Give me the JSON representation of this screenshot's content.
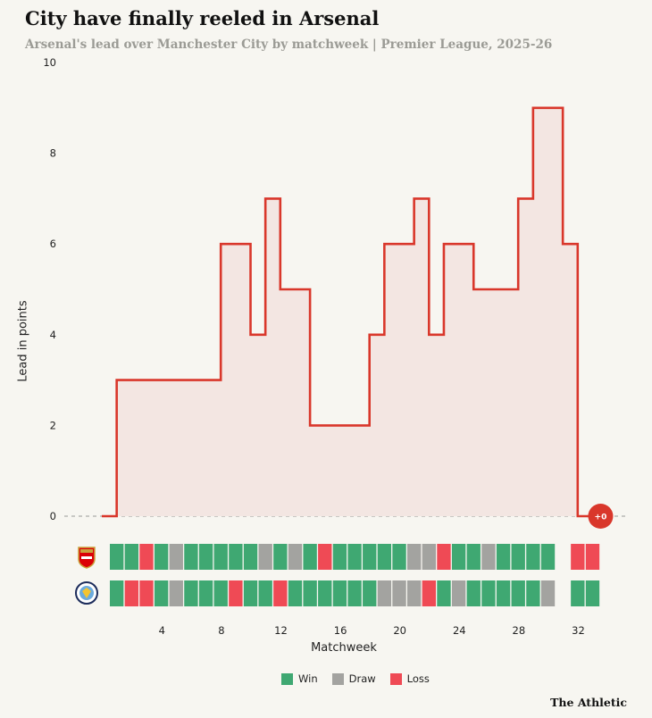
{
  "title": "City have finally reeled in Arsenal",
  "subtitle": "Arsenal's lead over Manchester City by matchweek | Premier League, 2025-26",
  "brand": "The Athletic",
  "legend": {
    "win": "Win",
    "draw": "Draw",
    "loss": "Loss"
  },
  "colors": {
    "win": "#3fa872",
    "draw": "#a3a3a0",
    "loss": "#ef4a55",
    "line": "#d9372b",
    "area": "#f3e6e2",
    "badge": "#d9372b"
  },
  "teams": {
    "arsenal": "arsenal-crest-icon",
    "city": "man-city-crest-icon"
  },
  "end_badge": "+0",
  "chart_data": {
    "type": "area",
    "title": "City have finally reeled in Arsenal",
    "subtitle": "Arsenal's lead over Manchester City by matchweek | Premier League, 2025-26",
    "xlabel": "Matchweek",
    "ylabel": "Lead in points",
    "xlim": [
      1,
      33
    ],
    "ylim": [
      0,
      10
    ],
    "yticks": [
      0,
      2,
      4,
      6,
      8,
      10
    ],
    "xticks": [
      4,
      8,
      12,
      16,
      20,
      24,
      28,
      32
    ],
    "series": [
      {
        "name": "Arsenal lead",
        "x": [
          1,
          2,
          3,
          4,
          5,
          6,
          7,
          8,
          9,
          10,
          11,
          12,
          13,
          14,
          15,
          16,
          17,
          18,
          19,
          20,
          21,
          22,
          23,
          24,
          25,
          26,
          27,
          28,
          29,
          30,
          31,
          32,
          33
        ],
        "values": [
          0,
          3,
          3,
          3,
          3,
          3,
          3,
          3,
          6,
          6,
          4,
          7,
          5,
          5,
          2,
          2,
          2,
          2,
          4,
          6,
          6,
          7,
          4,
          6,
          6,
          5,
          5,
          5,
          7,
          9,
          9,
          6,
          0
        ]
      }
    ],
    "results": {
      "arsenal": [
        "W",
        "W",
        "L",
        "W",
        "D",
        "W",
        "W",
        "W",
        "W",
        "W",
        "D",
        "W",
        "D",
        "W",
        "L",
        "W",
        "W",
        "W",
        "W",
        "W",
        "D",
        "D",
        "L",
        "W",
        "W",
        "D",
        "W",
        "W",
        "W",
        "W",
        "",
        "L",
        "L"
      ],
      "city": [
        "W",
        "L",
        "L",
        "W",
        "D",
        "W",
        "W",
        "W",
        "L",
        "W",
        "W",
        "L",
        "W",
        "W",
        "W",
        "W",
        "W",
        "W",
        "D",
        "D",
        "D",
        "L",
        "W",
        "D",
        "W",
        "W",
        "W",
        "W",
        "W",
        "D",
        "",
        "W",
        "W"
      ]
    }
  }
}
